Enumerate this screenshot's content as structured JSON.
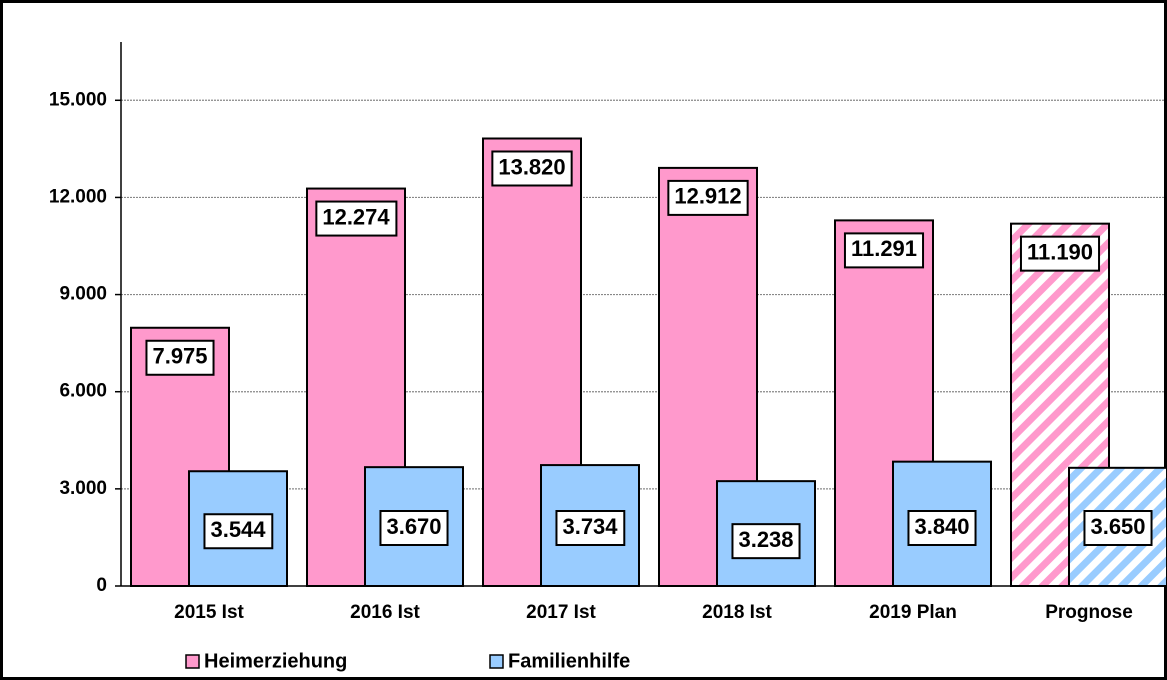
{
  "chart_data": {
    "type": "bar",
    "categories": [
      "2015 Ist",
      "2016 Ist",
      "2017 Ist",
      "2018 Ist",
      "2019 Plan",
      "Prognose"
    ],
    "series": [
      {
        "name": "Heimerziehung",
        "color": "#ff99cc",
        "values": [
          7975,
          12274,
          13820,
          12912,
          11291,
          11190
        ],
        "value_labels": [
          "7.975",
          "12.274",
          "13.820",
          "12.912",
          "11.291",
          "11.190"
        ]
      },
      {
        "name": "Familienhilfe",
        "color": "#99ccff",
        "values": [
          3544,
          3670,
          3734,
          3238,
          3840,
          3650
        ],
        "value_labels": [
          "3.544",
          "3.670",
          "3.734",
          "3.238",
          "3.840",
          "3.650"
        ]
      }
    ],
    "hatched": [
      false,
      false,
      false,
      false,
      false,
      true
    ],
    "ylim": [
      0,
      16800
    ],
    "yticks": [
      0,
      {
        "value": 3000,
        "label": "3.000"
      },
      {
        "value": 6000,
        "label": "6.000"
      },
      {
        "value": 9000,
        "label": "9.000"
      },
      {
        "value": 12000,
        "label": "12.000"
      },
      {
        "value": 15000,
        "label": "15.000"
      }
    ],
    "grid": true,
    "legend": "bottom"
  }
}
